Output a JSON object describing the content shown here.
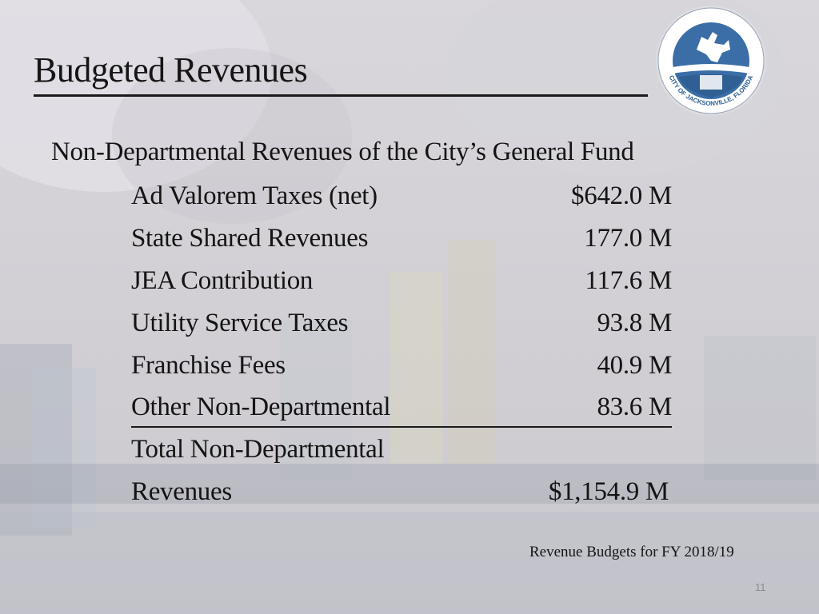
{
  "slide": {
    "title": "Budgeted Revenues",
    "subtitle": "Non-Departmental Revenues of the City’s General Fund",
    "items": [
      {
        "label": "Ad Valorem Taxes (net)",
        "amount": "$642.0 M"
      },
      {
        "label": "State Shared Revenues",
        "amount": "177.0 M"
      },
      {
        "label": "JEA Contribution",
        "amount": "117.6 M"
      },
      {
        "label": "Utility Service Taxes",
        "amount": "93.8 M"
      },
      {
        "label": "Franchise Fees",
        "amount": "40.9 M"
      },
      {
        "label": "Other Non-Departmental",
        "amount": "83.6 M"
      }
    ],
    "total": {
      "label_line1": "Total Non-Departmental",
      "label_line2": "Revenues",
      "amount": "$1,154.9 M"
    },
    "footer": "Revenue Budgets for FY 2018/19",
    "page_number": "11"
  },
  "seal": {
    "text": "CITY OF JACKSONVILLE, FLORIDA",
    "colors": {
      "ring": "#ffffff",
      "field": "#3b6ea6",
      "band": "#2f5f93"
    }
  }
}
